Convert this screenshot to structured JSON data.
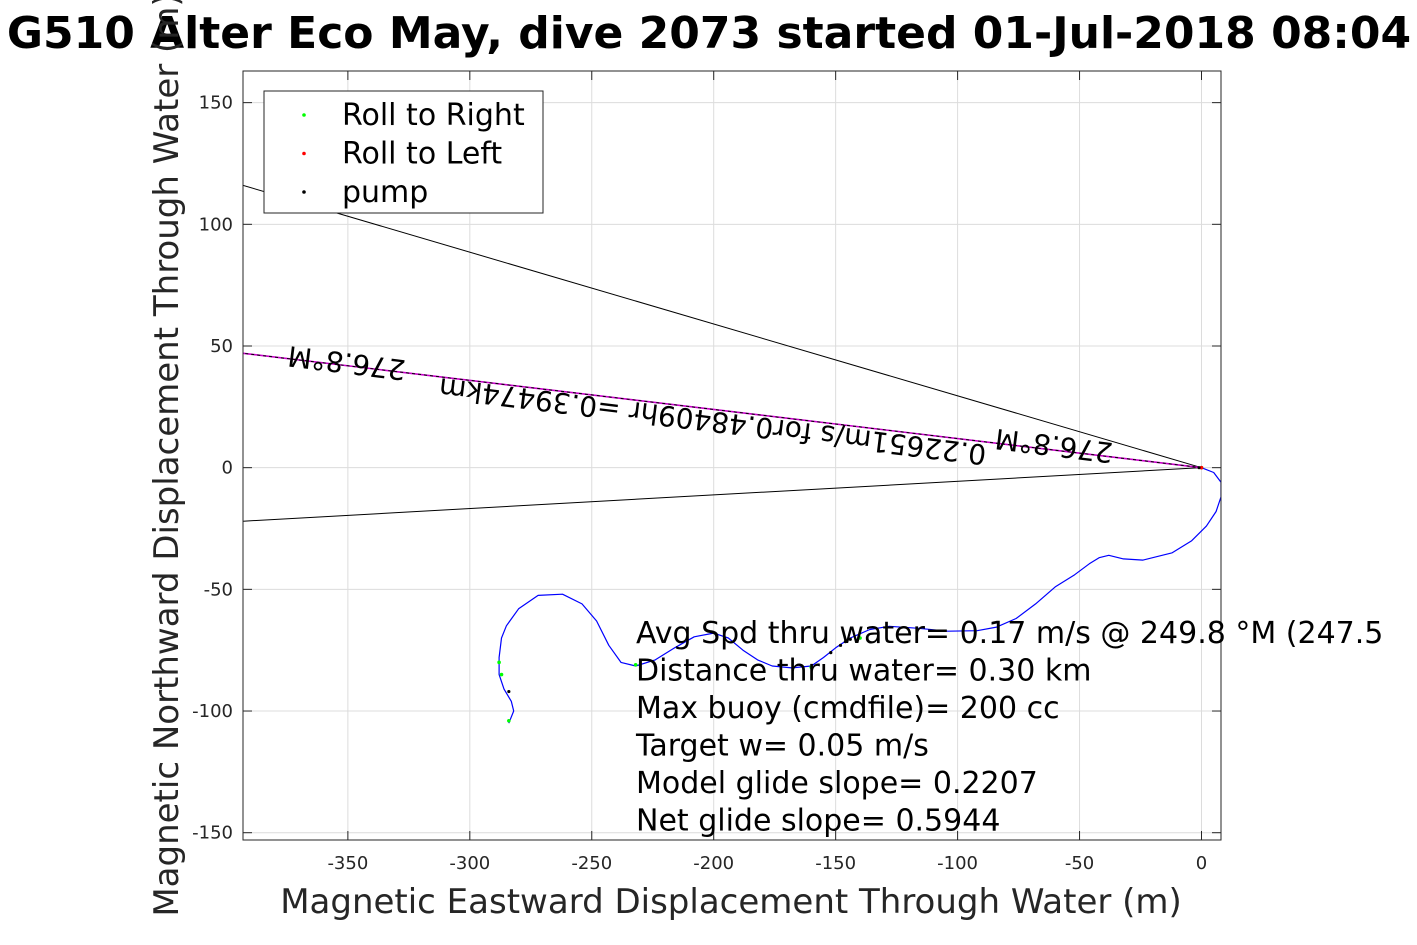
{
  "chart_data": {
    "type": "line",
    "title": "G510 Alter Eco May, dive 2073 started 01-Jul-2018 08:04",
    "xlabel": "Magnetic Eastward Displacement Through Water (m)",
    "ylabel": "Magnetic Northward Displacement Through Water (m)",
    "xlim": [
      -393,
      8
    ],
    "ylim": [
      -153,
      163
    ],
    "xticks": [
      -350,
      -300,
      -250,
      -200,
      -150,
      -100,
      -50,
      0
    ],
    "yticks": [
      -150,
      -100,
      -50,
      0,
      50,
      100,
      150
    ],
    "grid": true,
    "legend": {
      "placement": "top-left",
      "entries": [
        {
          "label": "Roll to Right",
          "color": "#00ff00"
        },
        {
          "label": "Roll to Left",
          "color": "#ff0000"
        },
        {
          "label": "pump",
          "color": "#000000"
        }
      ]
    },
    "track": {
      "color": "#0000ff",
      "points": [
        [
          0,
          0
        ],
        [
          5,
          -2
        ],
        [
          8,
          -6
        ],
        [
          8,
          -12
        ],
        [
          6,
          -18
        ],
        [
          2,
          -24
        ],
        [
          -4,
          -30
        ],
        [
          -12,
          -35
        ],
        [
          -24,
          -38
        ],
        [
          -32,
          -37.5
        ],
        [
          -38,
          -36
        ],
        [
          -42,
          -37
        ],
        [
          -46,
          -39.5
        ],
        [
          -52,
          -44
        ],
        [
          -60,
          -49
        ],
        [
          -68,
          -56
        ],
        [
          -76,
          -62
        ],
        [
          -84,
          -65.5
        ],
        [
          -92,
          -67
        ],
        [
          -104,
          -67.2
        ],
        [
          -116,
          -66
        ],
        [
          -128,
          -65.2
        ],
        [
          -136,
          -66.5
        ],
        [
          -144,
          -70
        ],
        [
          -150,
          -74
        ],
        [
          -155,
          -78
        ],
        [
          -160,
          -81.5
        ],
        [
          -168,
          -82.3
        ],
        [
          -176,
          -81.5
        ],
        [
          -182,
          -79
        ],
        [
          -188,
          -75
        ],
        [
          -194,
          -70
        ],
        [
          -200,
          -68
        ],
        [
          -208,
          -69.5
        ],
        [
          -216,
          -74
        ],
        [
          -224,
          -79
        ],
        [
          -232,
          -81.5
        ],
        [
          -238,
          -80
        ],
        [
          -243,
          -73
        ],
        [
          -248,
          -63
        ],
        [
          -254,
          -56
        ],
        [
          -262,
          -52
        ],
        [
          -272,
          -52.5
        ],
        [
          -280,
          -58
        ],
        [
          -285,
          -65
        ],
        [
          -287,
          -70
        ],
        [
          -288,
          -78
        ],
        [
          -288,
          -85
        ],
        [
          -286,
          -91
        ],
        [
          -283,
          -96
        ],
        [
          -282,
          -100
        ],
        [
          -284,
          -105
        ]
      ],
      "roll_right_points": [
        [
          -288,
          -80
        ],
        [
          -287,
          -85
        ],
        [
          -284,
          -104
        ],
        [
          -232,
          -81
        ],
        [
          -160,
          -82
        ],
        [
          -140,
          -70
        ],
        [
          0,
          0
        ]
      ],
      "roll_left_points": [
        [
          0,
          0
        ]
      ],
      "pump_points": [
        [
          -284,
          -92
        ],
        [
          -152,
          -76
        ],
        [
          -148,
          -73
        ],
        [
          -146,
          -71.5
        ],
        [
          -144,
          -70.5
        ],
        [
          -1,
          0
        ]
      ]
    },
    "lines": [
      {
        "color": "#000000",
        "points": [
          [
            0,
            0
          ],
          [
            -393,
            116
          ]
        ]
      },
      {
        "color": "#000000",
        "points": [
          [
            0,
            0
          ],
          [
            -393,
            -22
          ]
        ]
      },
      {
        "color": "#cc00cc",
        "points": [
          [
            0,
            0
          ],
          [
            -393,
            47
          ]
        ]
      },
      {
        "color": "#000000",
        "points": [
          [
            0,
            0
          ],
          [
            -393,
            47
          ]
        ]
      }
    ],
    "line_labels": [
      {
        "text": "276.8°M",
        "x": -350,
        "y": 47,
        "angle": 187
      },
      {
        "text": "0.22651m/s for0.48409hr =0.39474km",
        "x": -200,
        "y": 23,
        "angle": 187
      },
      {
        "text": "276.8°M",
        "x": -60,
        "y": 13,
        "angle": 187
      }
    ],
    "annotations": [
      "Avg Spd thru water=  0.17 m/s @ 249.8 °M (247.5",
      "Distance thru water=  0.30 km",
      "Max buoy (cmdfile)= 200 cc",
      "Target w= 0.05 m/s",
      "Model glide slope= 0.2207",
      "Net glide slope= 0.5944"
    ]
  }
}
